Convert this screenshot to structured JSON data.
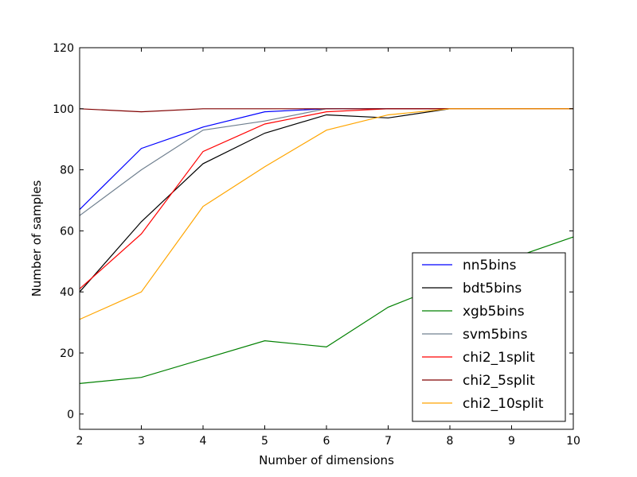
{
  "chart_data": {
    "type": "line",
    "title": "",
    "xlabel": "Number of dimensions",
    "ylabel": "Number of samples",
    "xlim": [
      2,
      10
    ],
    "ylim": [
      -5,
      120
    ],
    "xticks": [
      2,
      3,
      4,
      5,
      6,
      7,
      8,
      9,
      10
    ],
    "yticks": [
      0,
      20,
      40,
      60,
      80,
      100,
      120
    ],
    "grid": false,
    "legend_position": "lower-right",
    "series": [
      {
        "name": "nn5bins",
        "color": "#0000ff",
        "x": [
          2,
          3,
          4,
          5,
          6,
          7,
          8,
          9,
          10
        ],
        "values": [
          67,
          87,
          94,
          99,
          100,
          100,
          100,
          100,
          100
        ]
      },
      {
        "name": "bdt5bins",
        "color": "#000000",
        "x": [
          2,
          3,
          4,
          5,
          6,
          7,
          8,
          9,
          10
        ],
        "values": [
          40,
          63,
          82,
          92,
          98,
          97,
          100,
          100,
          100
        ]
      },
      {
        "name": "xgb5bins",
        "color": "#008000",
        "x": [
          2,
          3,
          4,
          5,
          6,
          7,
          8,
          9,
          10
        ],
        "values": [
          10,
          12,
          18,
          24,
          22,
          35,
          43,
          51,
          58
        ]
      },
      {
        "name": "svm5bins",
        "color": "#708090",
        "x": [
          2,
          3,
          4,
          5,
          6,
          7,
          8,
          9,
          10
        ],
        "values": [
          65,
          80,
          93,
          96,
          100,
          100,
          100,
          100,
          100
        ]
      },
      {
        "name": "chi2_1split",
        "color": "#ff0000",
        "x": [
          2,
          3,
          4,
          5,
          6,
          7,
          8,
          9,
          10
        ],
        "values": [
          41,
          59,
          86,
          95,
          99,
          100,
          100,
          100,
          100
        ]
      },
      {
        "name": "chi2_5split",
        "color": "#800000",
        "x": [
          2,
          3,
          4,
          5,
          6,
          7,
          8,
          9,
          10
        ],
        "values": [
          100,
          99,
          100,
          100,
          100,
          100,
          100,
          100,
          100
        ]
      },
      {
        "name": "chi2_10split",
        "color": "#ffa500",
        "x": [
          2,
          3,
          4,
          5,
          6,
          7,
          8,
          9,
          10
        ],
        "values": [
          31,
          40,
          68,
          81,
          93,
          98,
          100,
          100,
          100
        ]
      }
    ]
  }
}
